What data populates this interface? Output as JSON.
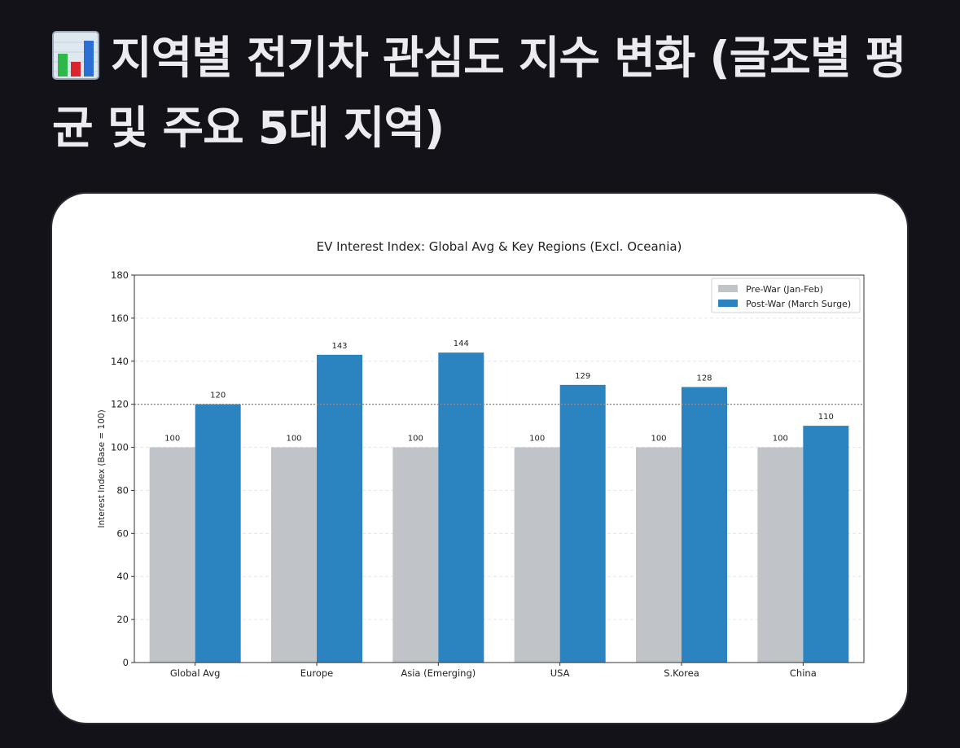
{
  "heading": {
    "icon": "bar-chart-emoji-icon",
    "title": "지역별 전기차 관심도 지수 변화 (글조별 평균 및 주요 5대 지역)"
  },
  "chart_data": {
    "type": "bar",
    "title": "EV Interest Index: Global Avg & Key Regions (Excl. Oceania)",
    "xlabel": "",
    "ylabel": "Interest Index (Base = 100)",
    "categories": [
      "Global Avg",
      "Europe",
      "Asia (Emerging)",
      "USA",
      "S.Korea",
      "China"
    ],
    "series": [
      {
        "name": "Pre-War (Jan-Feb)",
        "values": [
          100,
          100,
          100,
          100,
          100,
          100
        ],
        "color": "#c0c3c7"
      },
      {
        "name": "Post-War (March Surge)",
        "values": [
          120,
          143,
          144,
          129,
          128,
          110
        ],
        "color": "#2b83c0"
      }
    ],
    "ylim": [
      0,
      180
    ],
    "yticks": [
      0,
      20,
      40,
      60,
      80,
      100,
      120,
      140,
      160,
      180
    ],
    "reference_line": 120,
    "grid": true,
    "legend": "top-right"
  }
}
